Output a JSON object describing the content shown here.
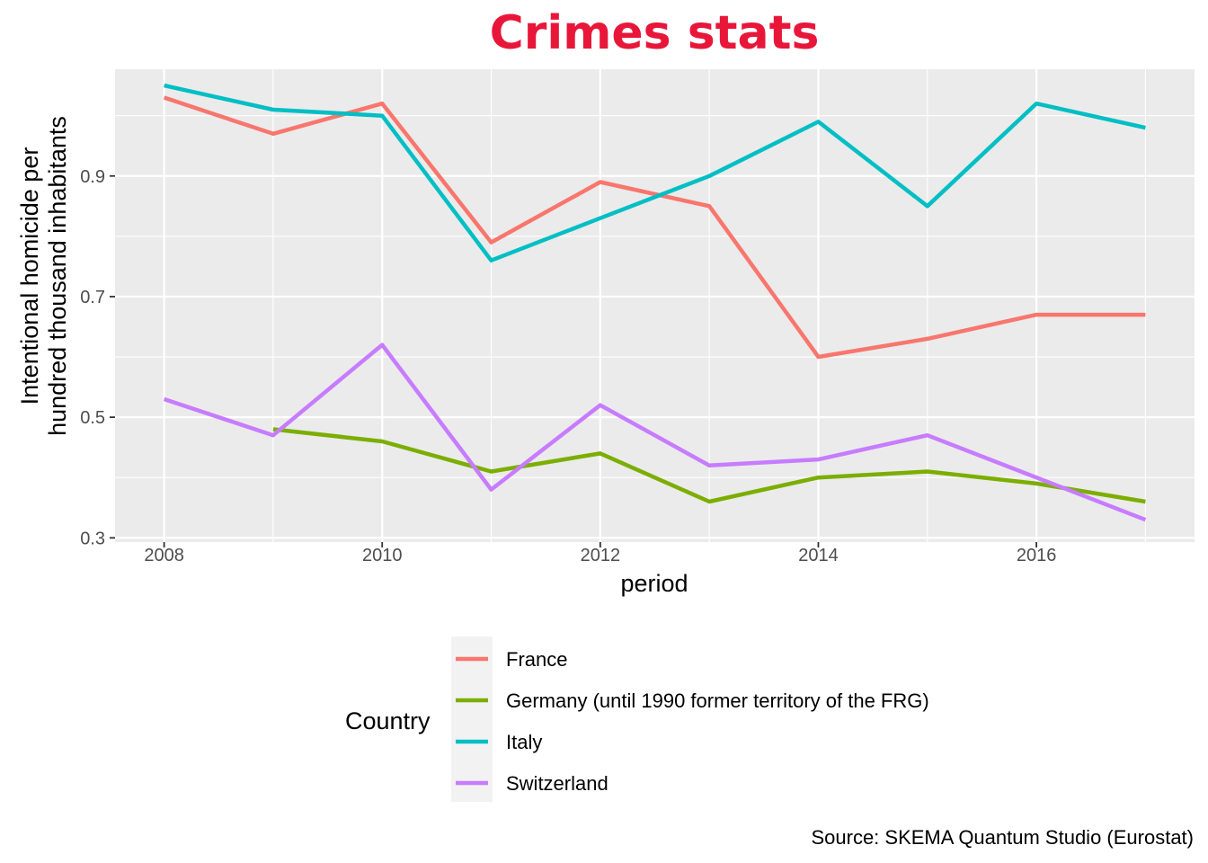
{
  "chart_data": {
    "type": "line",
    "title": "Crimes stats",
    "title_color": "#E8173A",
    "xlabel": "period",
    "ylabel_lines": [
      "Intentional homicide per",
      "hundred thousand inhabitants"
    ],
    "caption": "Source: SKEMA Quantum Studio (Eurostat)",
    "legend_title": "Country",
    "legend_position": "bottom",
    "xlim": [
      2007.55,
      2017.45
    ],
    "ylim": [
      0.293,
      1.077
    ],
    "x_ticks": [
      2008,
      2010,
      2012,
      2014,
      2016
    ],
    "y_ticks": [
      0.3,
      0.5,
      0.7,
      0.9
    ],
    "grid": true,
    "panel_background": "#EBEBEB",
    "series": [
      {
        "name": "France",
        "color": "#F8766D",
        "points": [
          [
            2008,
            1.03
          ],
          [
            2009,
            0.97
          ],
          [
            2010,
            1.02
          ],
          [
            2011,
            0.79
          ],
          [
            2012,
            0.89
          ],
          [
            2013,
            0.85
          ],
          [
            2014,
            0.6
          ],
          [
            2015,
            0.63
          ],
          [
            2016,
            0.67
          ],
          [
            2017,
            0.67
          ]
        ]
      },
      {
        "name": "Germany (until 1990 former territory of the FRG)",
        "color": "#7CAE00",
        "points": [
          [
            2009,
            0.48
          ],
          [
            2010,
            0.46
          ],
          [
            2011,
            0.41
          ],
          [
            2012,
            0.44
          ],
          [
            2013,
            0.36
          ],
          [
            2014,
            0.4
          ],
          [
            2015,
            0.41
          ],
          [
            2016,
            0.39
          ],
          [
            2017,
            0.36
          ]
        ]
      },
      {
        "name": "Italy",
        "color": "#00BFC4",
        "points": [
          [
            2008,
            1.05
          ],
          [
            2009,
            1.01
          ],
          [
            2010,
            1.0
          ],
          [
            2011,
            0.76
          ],
          [
            2012,
            0.83
          ],
          [
            2013,
            0.9
          ],
          [
            2014,
            0.99
          ],
          [
            2015,
            0.85
          ],
          [
            2016,
            1.02
          ],
          [
            2017,
            0.98
          ]
        ]
      },
      {
        "name": "Switzerland",
        "color": "#C77CFF",
        "points": [
          [
            2008,
            0.53
          ],
          [
            2009,
            0.47
          ],
          [
            2010,
            0.62
          ],
          [
            2011,
            0.38
          ],
          [
            2012,
            0.52
          ],
          [
            2013,
            0.42
          ],
          [
            2014,
            0.43
          ],
          [
            2015,
            0.47
          ],
          [
            2016,
            0.4
          ],
          [
            2017,
            0.33
          ]
        ]
      }
    ]
  }
}
